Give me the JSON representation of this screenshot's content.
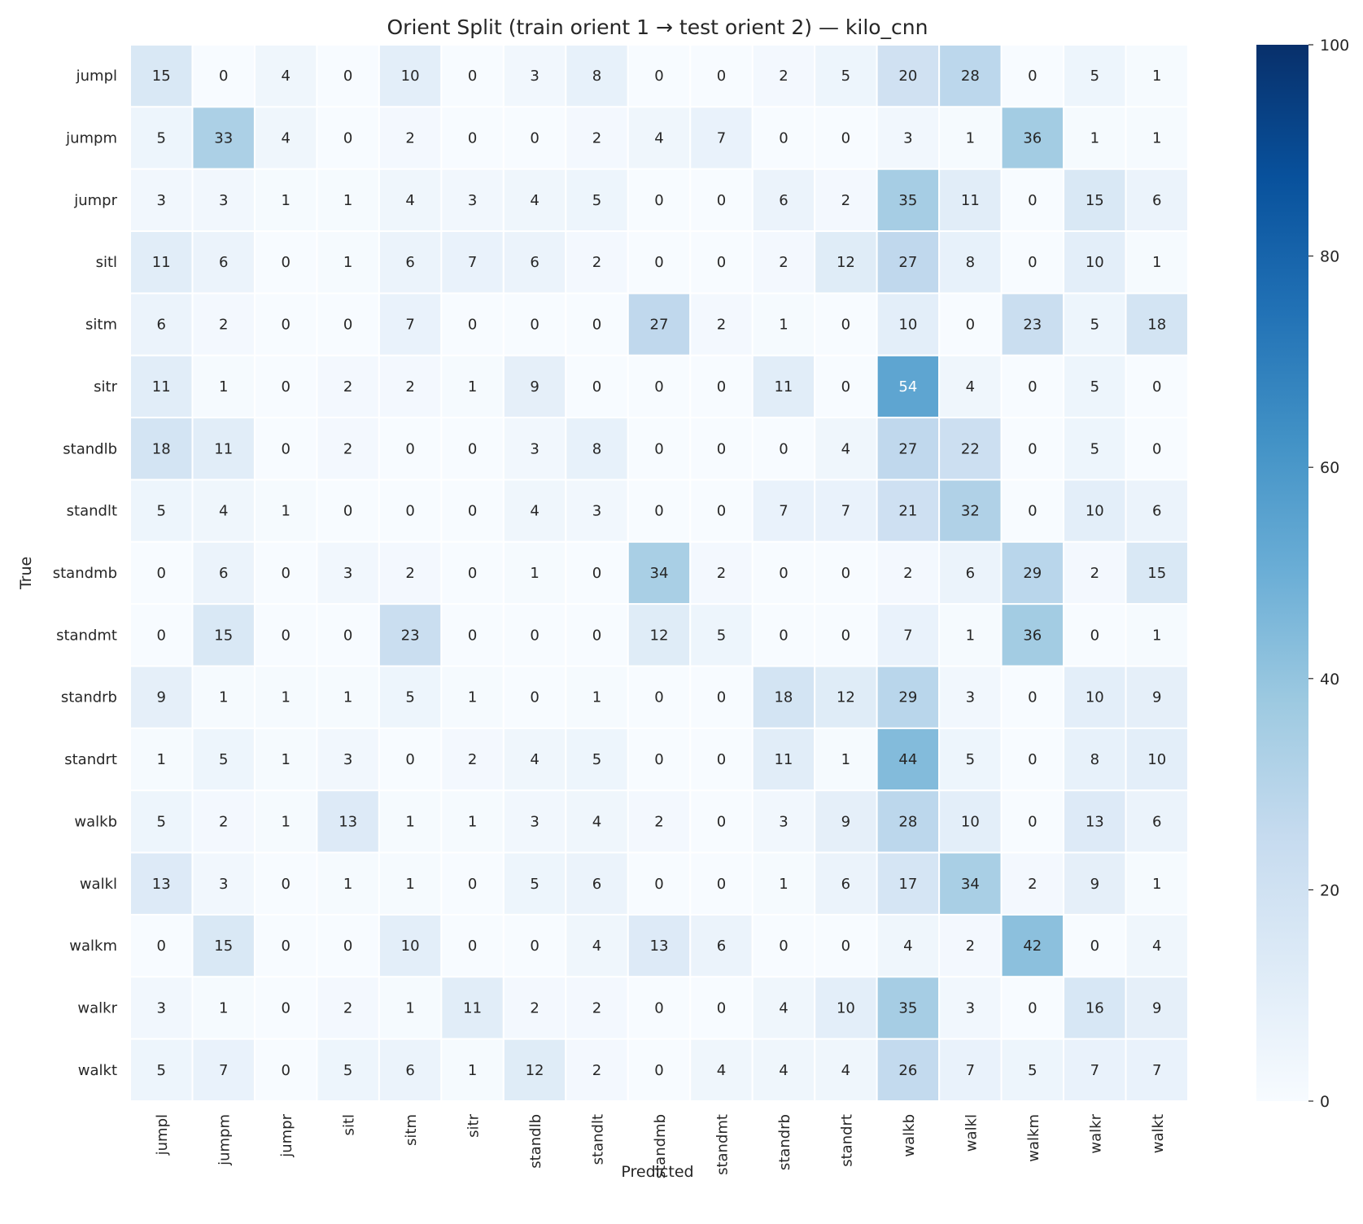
{
  "chart_data": {
    "type": "heatmap",
    "title": "Orient Split (train orient 1 → test orient 2) — kilo_cnn",
    "xlabel": "Predicted",
    "ylabel": "True",
    "x_categories": [
      "jumpl",
      "jumpm",
      "jumpr",
      "sitl",
      "sitm",
      "sitr",
      "standlb",
      "standlt",
      "standmb",
      "standmt",
      "standrb",
      "standrt",
      "walkb",
      "walkl",
      "walkm",
      "walkr",
      "walkt"
    ],
    "y_categories": [
      "jumpl",
      "jumpm",
      "jumpr",
      "sitl",
      "sitm",
      "sitr",
      "standlb",
      "standlt",
      "standmb",
      "standmt",
      "standrb",
      "standrt",
      "walkb",
      "walkl",
      "walkm",
      "walkr",
      "walkt"
    ],
    "values": [
      [
        15,
        0,
        4,
        0,
        10,
        0,
        3,
        8,
        0,
        0,
        2,
        5,
        20,
        28,
        0,
        5,
        1
      ],
      [
        5,
        33,
        4,
        0,
        2,
        0,
        0,
        2,
        4,
        7,
        0,
        0,
        3,
        1,
        36,
        1,
        1
      ],
      [
        3,
        3,
        1,
        1,
        4,
        3,
        4,
        5,
        0,
        0,
        6,
        2,
        35,
        11,
        0,
        15,
        6
      ],
      [
        11,
        6,
        0,
        1,
        6,
        7,
        6,
        2,
        0,
        0,
        2,
        12,
        27,
        8,
        0,
        10,
        1
      ],
      [
        6,
        2,
        0,
        0,
        7,
        0,
        0,
        0,
        27,
        2,
        1,
        0,
        10,
        0,
        23,
        5,
        18
      ],
      [
        11,
        1,
        0,
        2,
        2,
        1,
        9,
        0,
        0,
        0,
        11,
        0,
        54,
        4,
        0,
        5,
        0
      ],
      [
        18,
        11,
        0,
        2,
        0,
        0,
        3,
        8,
        0,
        0,
        0,
        4,
        27,
        22,
        0,
        5,
        0
      ],
      [
        5,
        4,
        1,
        0,
        0,
        0,
        4,
        3,
        0,
        0,
        7,
        7,
        21,
        32,
        0,
        10,
        6
      ],
      [
        0,
        6,
        0,
        3,
        2,
        0,
        1,
        0,
        34,
        2,
        0,
        0,
        2,
        6,
        29,
        2,
        15
      ],
      [
        0,
        15,
        0,
        0,
        23,
        0,
        0,
        0,
        12,
        5,
        0,
        0,
        7,
        1,
        36,
        0,
        1
      ],
      [
        9,
        1,
        1,
        1,
        5,
        1,
        0,
        1,
        0,
        0,
        18,
        12,
        29,
        3,
        0,
        10,
        9
      ],
      [
        1,
        5,
        1,
        3,
        0,
        2,
        4,
        5,
        0,
        0,
        11,
        1,
        44,
        5,
        0,
        8,
        10
      ],
      [
        5,
        2,
        1,
        13,
        1,
        1,
        3,
        4,
        2,
        0,
        3,
        9,
        28,
        10,
        0,
        13,
        6
      ],
      [
        13,
        3,
        0,
        1,
        1,
        0,
        5,
        6,
        0,
        0,
        1,
        6,
        17,
        34,
        2,
        9,
        1
      ],
      [
        0,
        15,
        0,
        0,
        10,
        0,
        0,
        4,
        13,
        6,
        0,
        0,
        4,
        2,
        42,
        0,
        4
      ],
      [
        3,
        1,
        0,
        2,
        1,
        11,
        2,
        2,
        0,
        0,
        4,
        10,
        35,
        3,
        0,
        16,
        9
      ],
      [
        5,
        7,
        0,
        5,
        6,
        1,
        12,
        2,
        0,
        4,
        4,
        4,
        26,
        7,
        5,
        7,
        7
      ]
    ],
    "vmin": 0,
    "vmax": 100,
    "colorbar_ticks": [
      0,
      20,
      40,
      60,
      80,
      100
    ],
    "colormap": "Blues",
    "grid": false,
    "legend": "colorbar-right"
  }
}
